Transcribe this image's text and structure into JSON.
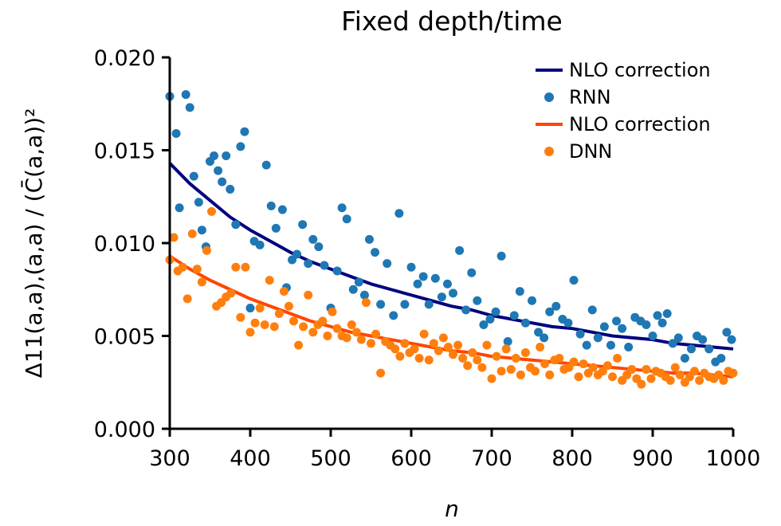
{
  "chart_data": {
    "type": "scatter",
    "title": "Fixed depth/time",
    "xlabel": "n",
    "ylabel": "Δ11(a,a),(a,a) / (C̄(a,a))²",
    "xlim": [
      300,
      1000
    ],
    "ylim": [
      0,
      0.02
    ],
    "xticks": [
      300,
      400,
      500,
      600,
      700,
      800,
      900,
      1000
    ],
    "yticks": [
      0.0,
      0.005,
      0.01,
      0.015,
      0.02
    ],
    "xtick_labels": [
      "300",
      "400",
      "500",
      "600",
      "700",
      "800",
      "900",
      "1000"
    ],
    "ytick_labels": [
      "0.000",
      "0.005",
      "0.010",
      "0.015",
      "0.020"
    ],
    "grid": false,
    "legend_position": "top-right",
    "legend": [
      "NLO correction",
      "RNN",
      "NLO correction",
      "DNN"
    ],
    "series": [
      {
        "name": "NLO correction",
        "kind": "line",
        "color": "#00007f",
        "x": [
          300,
          325,
          350,
          375,
          400,
          425,
          450,
          475,
          500,
          525,
          550,
          575,
          600,
          625,
          650,
          675,
          700,
          725,
          750,
          775,
          800,
          825,
          850,
          875,
          900,
          925,
          950,
          975,
          1000
        ],
        "y": [
          0.0143,
          0.0132,
          0.0123,
          0.0114,
          0.0107,
          0.0101,
          0.0095,
          0.009,
          0.0086,
          0.0082,
          0.0078,
          0.0075,
          0.0072,
          0.0069,
          0.0066,
          0.0064,
          0.0061,
          0.0059,
          0.0057,
          0.0055,
          0.0054,
          0.0052,
          0.005,
          0.0049,
          0.0048,
          0.0046,
          0.0045,
          0.0044,
          0.0043
        ]
      },
      {
        "name": "RNN",
        "kind": "scatter",
        "color": "#1f77b4",
        "x": [
          300,
          308,
          312,
          320,
          325,
          330,
          336,
          340,
          345,
          350,
          355,
          360,
          365,
          370,
          375,
          382,
          388,
          393,
          400,
          405,
          412,
          420,
          426,
          432,
          440,
          445,
          452,
          458,
          465,
          472,
          478,
          485,
          492,
          500,
          508,
          514,
          520,
          528,
          535,
          542,
          548,
          555,
          562,
          570,
          578,
          585,
          592,
          600,
          608,
          615,
          622,
          630,
          638,
          645,
          652,
          660,
          668,
          675,
          682,
          690,
          698,
          705,
          712,
          720,
          728,
          735,
          742,
          750,
          758,
          765,
          772,
          780,
          788,
          795,
          802,
          810,
          818,
          825,
          832,
          840,
          848,
          855,
          862,
          870,
          878,
          885,
          892,
          900,
          906,
          912,
          918,
          925,
          932,
          940,
          948,
          955,
          962,
          970,
          978,
          985,
          992,
          998
        ],
        "y": [
          0.0179,
          0.0159,
          0.0119,
          0.018,
          0.0173,
          0.0136,
          0.0122,
          0.0107,
          0.0098,
          0.0144,
          0.0147,
          0.0139,
          0.0133,
          0.0147,
          0.0129,
          0.011,
          0.0152,
          0.016,
          0.0065,
          0.0101,
          0.0099,
          0.0142,
          0.012,
          0.0108,
          0.0118,
          0.0076,
          0.0091,
          0.0094,
          0.011,
          0.0089,
          0.0102,
          0.0098,
          0.0088,
          0.0065,
          0.0085,
          0.0119,
          0.0113,
          0.0075,
          0.0079,
          0.0072,
          0.0102,
          0.0095,
          0.0067,
          0.0089,
          0.0061,
          0.0116,
          0.0067,
          0.0087,
          0.0078,
          0.0082,
          0.0067,
          0.0081,
          0.0071,
          0.0078,
          0.0073,
          0.0096,
          0.0064,
          0.0084,
          0.0069,
          0.0056,
          0.0059,
          0.0063,
          0.0093,
          0.0047,
          0.0061,
          0.0074,
          0.0057,
          0.0069,
          0.0052,
          0.0049,
          0.0063,
          0.0066,
          0.0059,
          0.0057,
          0.008,
          0.0051,
          0.0045,
          0.0064,
          0.0049,
          0.0055,
          0.0045,
          0.0058,
          0.0054,
          0.0044,
          0.006,
          0.0058,
          0.0056,
          0.005,
          0.0061,
          0.0057,
          0.0062,
          0.0046,
          0.0049,
          0.0038,
          0.0043,
          0.005,
          0.0048,
          0.0043,
          0.0036,
          0.0038,
          0.0052,
          0.0048
        ]
      },
      {
        "name": "NLO correction",
        "kind": "line",
        "color": "#ff4500",
        "x": [
          300,
          325,
          350,
          375,
          400,
          425,
          450,
          475,
          500,
          525,
          550,
          575,
          600,
          625,
          650,
          675,
          700,
          725,
          750,
          775,
          800,
          825,
          850,
          875,
          900,
          925,
          950,
          975,
          1000
        ],
        "y": [
          0.0093,
          0.0086,
          0.008,
          0.0075,
          0.007,
          0.0066,
          0.0062,
          0.0058,
          0.0055,
          0.0052,
          0.005,
          0.0048,
          0.0046,
          0.0044,
          0.0042,
          0.0041,
          0.0039,
          0.0038,
          0.0037,
          0.0036,
          0.0035,
          0.0034,
          0.0033,
          0.0032,
          0.0031,
          0.003,
          0.003,
          0.0029,
          0.0028
        ]
      },
      {
        "name": "DNN",
        "kind": "scatter",
        "color": "#ff7f0e",
        "x": [
          300,
          305,
          310,
          316,
          322,
          328,
          334,
          340,
          346,
          352,
          358,
          364,
          370,
          376,
          382,
          388,
          394,
          400,
          406,
          412,
          418,
          424,
          430,
          436,
          442,
          448,
          454,
          460,
          466,
          472,
          478,
          484,
          490,
          496,
          502,
          508,
          514,
          520,
          526,
          532,
          538,
          544,
          550,
          556,
          562,
          568,
          574,
          580,
          586,
          592,
          598,
          604,
          610,
          616,
          622,
          628,
          634,
          640,
          646,
          652,
          658,
          664,
          670,
          676,
          682,
          688,
          694,
          700,
          706,
          712,
          718,
          724,
          730,
          736,
          742,
          748,
          754,
          760,
          766,
          772,
          778,
          784,
          790,
          796,
          802,
          808,
          814,
          820,
          826,
          832,
          838,
          844,
          850,
          856,
          862,
          868,
          874,
          880,
          886,
          892,
          898,
          904,
          910,
          916,
          922,
          928,
          934,
          940,
          946,
          952,
          958,
          964,
          970,
          976,
          982,
          988,
          994,
          1000
        ],
        "y": [
          0.0091,
          0.0103,
          0.0085,
          0.0087,
          0.007,
          0.0105,
          0.0086,
          0.0079,
          0.0096,
          0.0117,
          0.0066,
          0.0068,
          0.0071,
          0.0073,
          0.0087,
          0.006,
          0.0087,
          0.0052,
          0.0057,
          0.0065,
          0.0056,
          0.008,
          0.0055,
          0.0062,
          0.0074,
          0.0066,
          0.0058,
          0.0045,
          0.0055,
          0.0072,
          0.0052,
          0.0056,
          0.0058,
          0.005,
          0.0063,
          0.0054,
          0.005,
          0.0049,
          0.0056,
          0.0052,
          0.0048,
          0.0068,
          0.0046,
          0.0051,
          0.003,
          0.0047,
          0.0045,
          0.0043,
          0.0039,
          0.0046,
          0.0041,
          0.0043,
          0.0038,
          0.0051,
          0.0037,
          0.0046,
          0.0042,
          0.0049,
          0.0044,
          0.004,
          0.0045,
          0.0038,
          0.0034,
          0.0041,
          0.0037,
          0.0033,
          0.0045,
          0.0027,
          0.0039,
          0.0031,
          0.0043,
          0.0032,
          0.0038,
          0.0029,
          0.0041,
          0.0033,
          0.0031,
          0.0044,
          0.0035,
          0.0029,
          0.0037,
          0.0038,
          0.0032,
          0.0033,
          0.0036,
          0.0028,
          0.0035,
          0.003,
          0.0033,
          0.0029,
          0.0031,
          0.0034,
          0.0028,
          0.0038,
          0.0026,
          0.0029,
          0.0032,
          0.0027,
          0.0024,
          0.0032,
          0.0027,
          0.0031,
          0.003,
          0.0028,
          0.0026,
          0.0033,
          0.0029,
          0.0025,
          0.0028,
          0.0031,
          0.0026,
          0.003,
          0.0028,
          0.0027,
          0.0029,
          0.0026,
          0.0031,
          0.003
        ]
      }
    ]
  }
}
